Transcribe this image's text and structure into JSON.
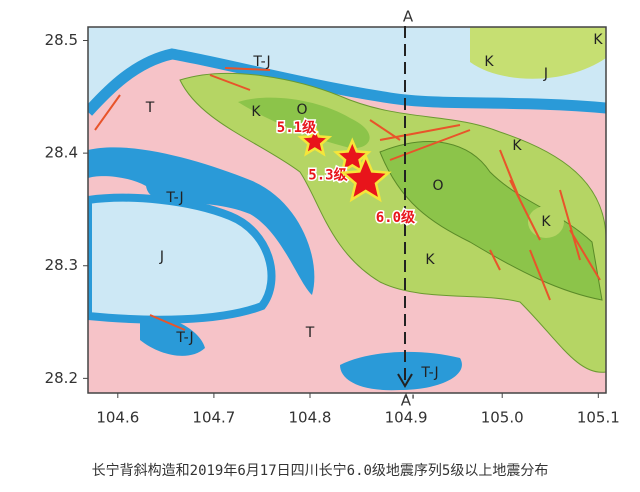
{
  "chart_data": {
    "type": "map",
    "caption": "长宁背斜构造和2019年6月17日四川长宁6.0级地震序列5级以上地震分布",
    "xlim": [
      104.569,
      105.108
    ],
    "ylim": [
      28.187,
      28.512
    ],
    "xticks": [
      104.6,
      104.7,
      104.8,
      104.9,
      {
        "value": 105,
        "label": "105.0"
      },
      105.1
    ],
    "yticks": [
      28.2,
      28.3,
      28.4,
      28.5
    ],
    "regions": [
      "T-J",
      "K",
      "J",
      "K",
      "T",
      "K",
      "O",
      "K",
      "O",
      "T-J",
      "K",
      "J",
      "K",
      "T",
      "T-J",
      "T-J"
    ],
    "section": [
      "A",
      "A'"
    ],
    "events": [
      {
        "x": 104.805,
        "y": 28.41,
        "magnitude": 5.1,
        "label": "5.1级"
      },
      {
        "x": 104.844,
        "y": 28.396,
        "magnitude": 5.3,
        "label": "5.3级"
      },
      {
        "x": 104.858,
        "y": 28.376,
        "magnitude": 6.0,
        "label": "6.0级"
      }
    ]
  }
}
